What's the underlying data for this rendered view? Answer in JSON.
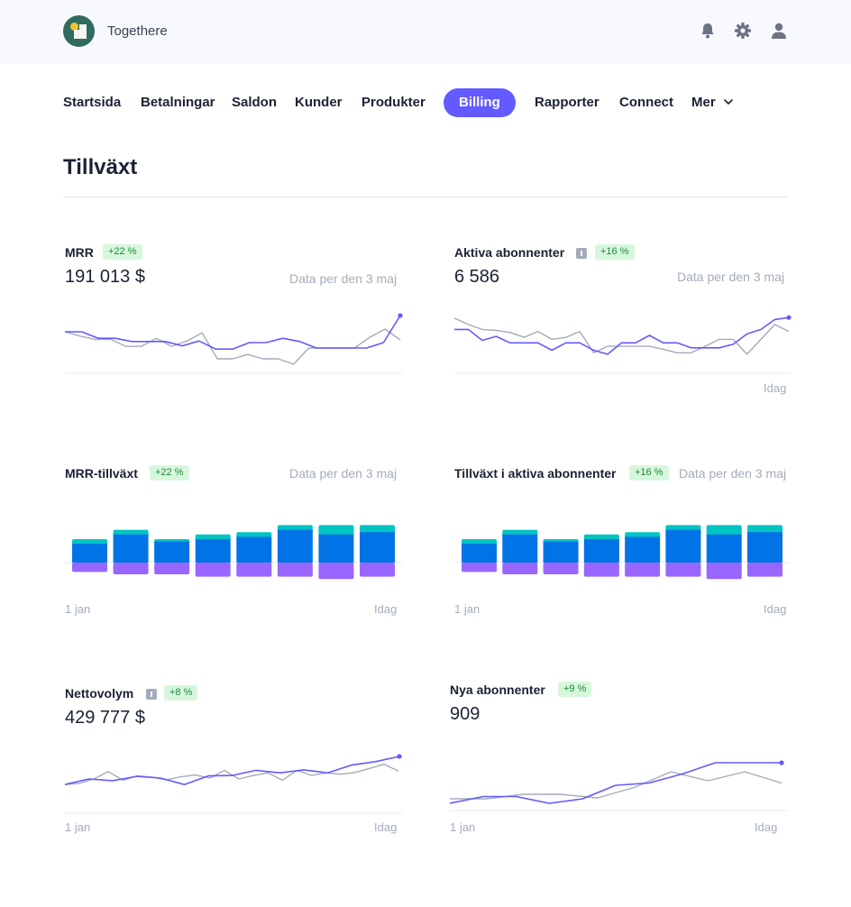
{
  "app": {
    "name": "Togethere"
  },
  "nav": {
    "items": [
      "Startsida",
      "Betalningar",
      "Saldon",
      "Kunder",
      "Produkter",
      "Billing",
      "Rapporter",
      "Connect",
      "Mer"
    ],
    "active": "Billing"
  },
  "icons": {
    "notifications": "bell-icon",
    "settings": "gear-icon",
    "account": "user-icon",
    "more": "chevron-down-icon",
    "info": "info-icon"
  },
  "colors": {
    "accent": "#635bff",
    "current_line": "#635bff",
    "previous_line": "#a3acb9",
    "positive_badge_bg": "#d7f7dc",
    "positive_badge_text": "#1d8a3a",
    "bar_top": "#00c4c4",
    "bar_mid": "#0073e6",
    "bar_bottom": "#9966ff"
  },
  "page": {
    "title": "Tillväxt"
  },
  "panels": {
    "mrr": {
      "title": "MRR",
      "badge": "+22 %",
      "value": "191 013 $",
      "note": "Data per den 3 maj"
    },
    "active_subscribers": {
      "title": "Aktiva abonnenter",
      "badge": "+16 %",
      "value": "6 586",
      "note": "Data per den 3 maj",
      "x_end": "Idag"
    },
    "mrr_growth": {
      "title": "MRR-tillväxt",
      "badge": "+22 %",
      "note": "Data per den 3 maj",
      "x_start": "1 jan",
      "x_end": "Idag"
    },
    "subscriber_growth": {
      "title": "Tillväxt i aktiva abonnenter",
      "badge": "+16 %",
      "note": "Data per den 3 maj",
      "x_start": "1 jan",
      "x_end": "Idag"
    },
    "net_volume": {
      "title": "Nettovolym",
      "badge": "+8 %",
      "value": "429 777 $",
      "x_start": "1 jan",
      "x_end": "Idag"
    },
    "new_subscribers": {
      "title": "Nya abonnenter",
      "badge": "+9 %",
      "value": "909",
      "x_start": "1 jan",
      "x_end": "Idag"
    }
  },
  "chart_data": [
    {
      "id": "mrr",
      "type": "line",
      "title": "MRR",
      "ylim": [
        0,
        100
      ],
      "series": [
        {
          "values": [
            70,
            70,
            58,
            58,
            52,
            52,
            52,
            44,
            53,
            38,
            38,
            50,
            50,
            58,
            52,
            40,
            40,
            40,
            40,
            50,
            100
          ]
        },
        {
          "values": [
            70,
            62,
            56,
            56,
            43,
            43,
            58,
            43,
            53,
            68,
            20,
            20,
            28,
            20,
            20,
            10,
            40,
            40,
            40,
            40,
            60,
            75,
            55
          ]
        }
      ]
    },
    {
      "id": "active_subscribers",
      "type": "line",
      "title": "Aktiva abonnenter",
      "ylim": [
        0,
        100
      ],
      "series": [
        {
          "values": [
            72,
            72,
            50,
            58,
            45,
            45,
            45,
            30,
            45,
            45,
            30,
            22,
            45,
            45,
            60,
            45,
            45,
            35,
            35,
            35,
            42,
            63,
            72,
            92,
            96
          ]
        },
        {
          "values": [
            95,
            82,
            72,
            70,
            66,
            56,
            68,
            52,
            56,
            68,
            25,
            38,
            38,
            38,
            38,
            32,
            25,
            25,
            38,
            52,
            52,
            22,
            52,
            82,
            68
          ]
        }
      ]
    },
    {
      "id": "mrr_growth",
      "type": "bar",
      "title": "MRR-tillväxt",
      "series": [
        {
          "name": "bar_top",
          "values": [
            2,
            2,
            1,
            2,
            2,
            2,
            4,
            3
          ]
        },
        {
          "name": "bar_mid",
          "values": [
            8,
            12,
            9,
            10,
            11,
            14,
            12,
            13
          ]
        },
        {
          "name": "bar_bottom",
          "values": [
            -4,
            -5,
            -5,
            -6,
            -6,
            -6,
            -7,
            -6
          ]
        }
      ]
    },
    {
      "id": "subscriber_growth",
      "type": "bar",
      "title": "Tillväxt i aktiva abonnenter",
      "series": [
        {
          "name": "bar_top",
          "values": [
            2,
            2,
            1,
            2,
            2,
            2,
            4,
            3
          ]
        },
        {
          "name": "bar_mid",
          "values": [
            8,
            12,
            9,
            10,
            11,
            14,
            12,
            13
          ]
        },
        {
          "name": "bar_bottom",
          "values": [
            -4,
            -5,
            -5,
            -6,
            -6,
            -6,
            -7,
            -6
          ]
        }
      ]
    },
    {
      "id": "net_volume",
      "type": "line",
      "title": "Nettovolym",
      "ylim": [
        0,
        100
      ],
      "series": [
        {
          "values": [
            35,
            48,
            44,
            54,
            50,
            35,
            55,
            56,
            68,
            62,
            69,
            62,
            80,
            88,
            100
          ]
        },
        {
          "values": [
            35,
            38,
            48,
            65,
            45,
            55,
            52,
            46,
            53,
            57,
            50,
            68,
            48,
            56,
            62,
            45,
            68,
            56,
            62,
            59,
            63,
            72,
            82,
            66
          ]
        }
      ]
    },
    {
      "id": "new_subscribers",
      "type": "line",
      "title": "Nya abonnenter",
      "ylim": [
        0,
        100
      ],
      "series": [
        {
          "values": [
            10,
            25,
            25,
            10,
            20,
            50,
            55,
            75,
            100,
            100,
            100
          ]
        },
        {
          "values": [
            20,
            20,
            30,
            30,
            22,
            45,
            80,
            60,
            80,
            55
          ]
        }
      ]
    }
  ]
}
